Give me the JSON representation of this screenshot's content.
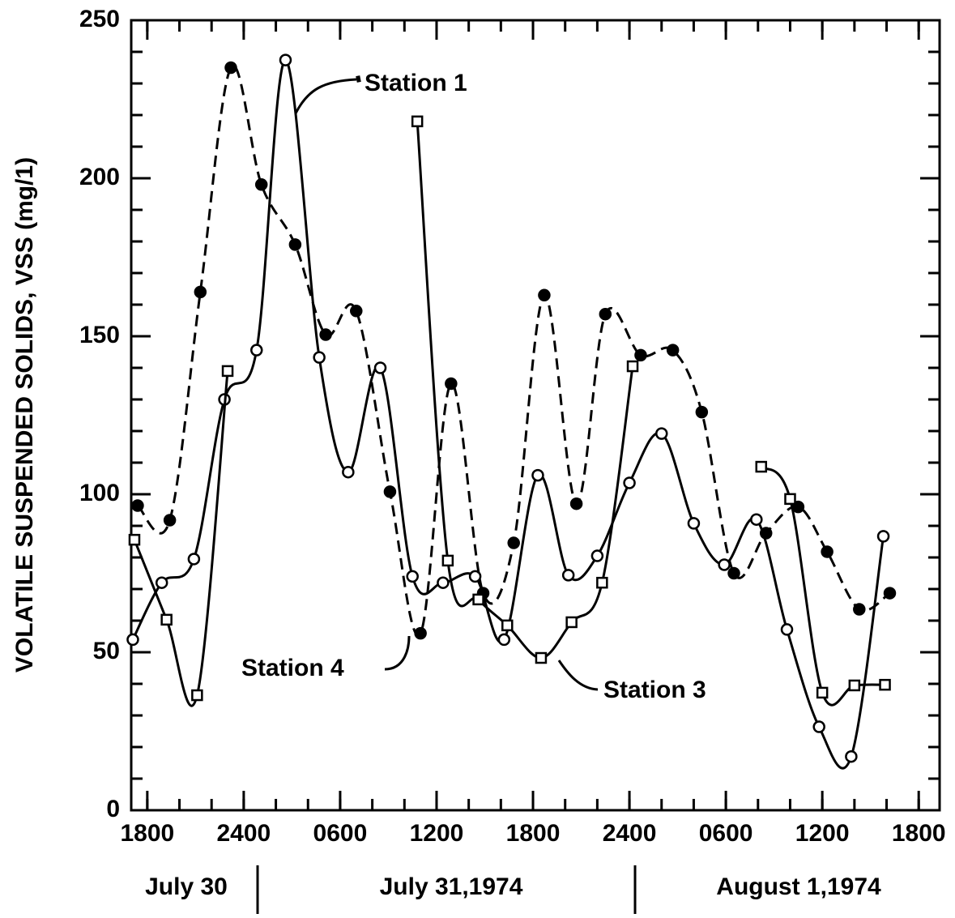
{
  "chart_data": {
    "type": "line",
    "y_label": "VOLATILE SUSPENDED SOLIDS, VSS (mg/1)",
    "date_labels": [
      "July 30",
      "July 31,1974",
      "August 1,1974"
    ],
    "xlim": [
      17,
      67.3
    ],
    "xticks": [
      {
        "value": 18,
        "label": "1800"
      },
      {
        "value": 24,
        "label": "2400"
      },
      {
        "value": 30,
        "label": "0600"
      },
      {
        "value": 36,
        "label": "1200"
      },
      {
        "value": 42,
        "label": "1800"
      },
      {
        "value": 48,
        "label": "2400"
      },
      {
        "value": 54,
        "label": "0600"
      },
      {
        "value": 60,
        "label": "1200"
      },
      {
        "value": 66,
        "label": "1800"
      }
    ],
    "ylim": [
      0,
      250
    ],
    "yticks": [
      0,
      50,
      100,
      150,
      200,
      250
    ],
    "series": [
      {
        "name": "Station 1",
        "color": "#000000",
        "marker": "open-circle",
        "dashed": false,
        "x": [
          17.1,
          18.9,
          20.9,
          22.8,
          24.8,
          26.6,
          28.7,
          30.5,
          32.5,
          34.5,
          36.4,
          38.4,
          40.2,
          42.3,
          44.2,
          46.0,
          48.0,
          50.0,
          52.0,
          53.9,
          55.9,
          57.8,
          59.8,
          61.8,
          63.8
        ],
        "values": [
          54,
          72,
          79.5,
          130,
          145.6,
          237.4,
          143.3,
          107,
          140,
          74,
          72,
          74,
          54,
          106,
          74.4,
          80.5,
          103.6,
          119.2,
          90.8,
          77.7,
          92,
          57.2,
          26.4,
          17,
          86.7
        ]
      },
      {
        "name": "Station 4",
        "color": "#000000",
        "marker": "filled-circle",
        "dashed": true,
        "x": [
          17.4,
          19.4,
          21.3,
          23.2,
          25.1,
          27.2,
          29.1,
          31.0,
          33.1,
          35.0,
          36.9,
          38.9,
          40.8,
          42.7,
          44.7,
          46.5,
          48.7,
          50.7,
          52.5,
          54.5,
          56.5,
          58.5,
          60.3,
          62.3,
          64.2
        ],
        "values": [
          96.4,
          91.8,
          164,
          235,
          198,
          179,
          150.5,
          158,
          100.8,
          56,
          135,
          68.7,
          84.6,
          163,
          97,
          157,
          144,
          145.6,
          126,
          75,
          87.7,
          96,
          81.8,
          63.6,
          68.7
        ]
      },
      {
        "name": "Station 3",
        "color": "#000000",
        "marker": "open-square",
        "dashed": false,
        "x": [
          17.2,
          19.2,
          21.1,
          23.0,
          null,
          34.8,
          36.7,
          38.6,
          40.4,
          42.5,
          44.4,
          46.3,
          48.2,
          null,
          56.2,
          58.0,
          60.0,
          62.0,
          63.9
        ],
        "values": [
          85.6,
          60.3,
          36.4,
          139,
          null,
          218,
          79,
          66.7,
          58.5,
          48.2,
          59.5,
          72,
          140.5,
          null,
          108.7,
          98.5,
          37.2,
          39.5,
          39.7
        ]
      }
    ]
  }
}
